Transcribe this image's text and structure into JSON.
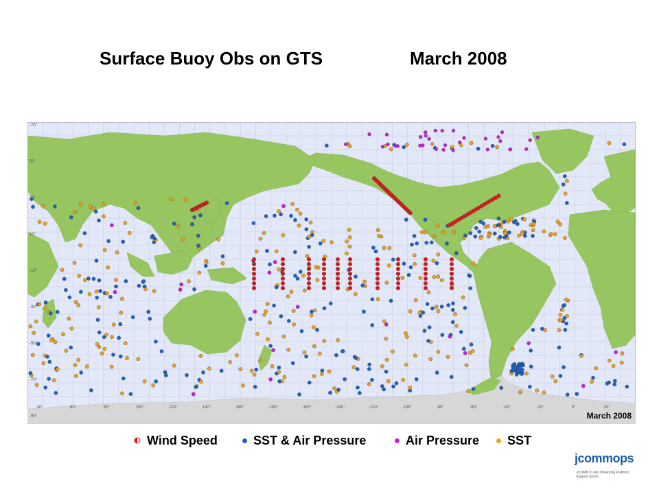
{
  "title": {
    "left": "Surface Buoy Obs on GTS",
    "right": "March 2008"
  },
  "map": {
    "stamp": "March 2008",
    "lat_labels": [
      "-70°",
      "50°",
      "30°",
      "10°",
      "-10°",
      "-30°",
      "-50°",
      "-70°",
      "-90°"
    ],
    "lon_labels": [
      "40°",
      "60°",
      "80°",
      "100°",
      "120°",
      "140°",
      "160°",
      "-180°",
      "-160°",
      "-140°",
      "-120°",
      "-100°",
      "-80°",
      "-60°",
      "-40°",
      "-20°",
      "0°",
      "20°"
    ],
    "colors": {
      "ocean": "#e3e8f9",
      "land": "#97c660",
      "ice": "#d7d7d7",
      "grid": "#c4c8d6",
      "frame": "#8f9295"
    }
  },
  "legend": [
    {
      "label": "Wind Speed",
      "color": "#e01a1a",
      "icon": "half-circle-icon"
    },
    {
      "label": "SST & Air Pressure",
      "color": "#1d63c6",
      "icon": "circle-icon"
    },
    {
      "label": "Air Pressure",
      "color": "#c81fd6",
      "icon": "circle-icon"
    },
    {
      "label": "SST",
      "color": "#f0a21a",
      "icon": "circle-icon"
    }
  ],
  "logo": {
    "text": "jcommops",
    "subtitle": "JCOMM In situ Observing Platform Support centre"
  }
}
